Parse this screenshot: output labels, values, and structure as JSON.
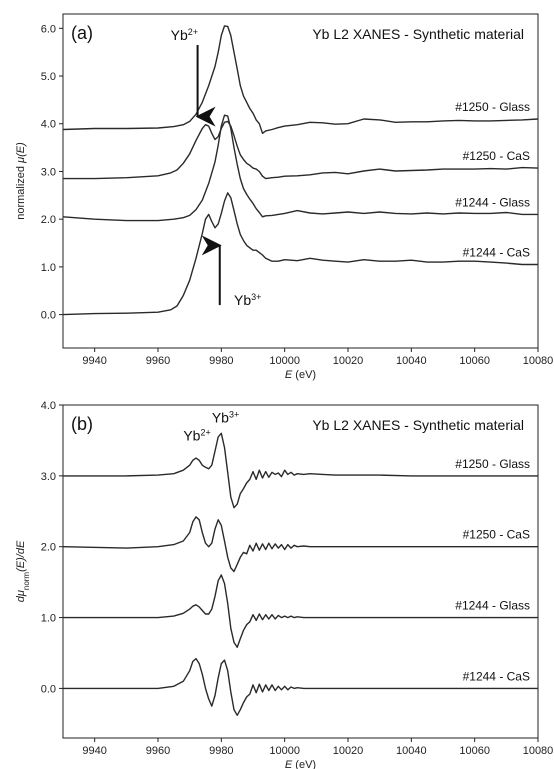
{
  "chart_data": [
    {
      "type": "line",
      "panel": "(a)",
      "title": "Yb L2 XANES - Synthetic material",
      "xlabel": "(eV)",
      "xlabel_math": "E",
      "ylabel_prefix": "normalized ",
      "ylabel_math": "μ(E)",
      "xlim": [
        9930,
        10080
      ],
      "ylim": [
        -0.7,
        6.3
      ],
      "xticks": [
        9940,
        9960,
        9980,
        10000,
        10020,
        10040,
        10060,
        10080
      ],
      "yticks": [
        0.0,
        1.0,
        2.0,
        3.0,
        4.0,
        5.0,
        6.0
      ],
      "ytick_labels": [
        "0.0",
        "1.0",
        "2.0",
        "3.0",
        "4.0",
        "5.0",
        "6.0"
      ],
      "annotations": [
        {
          "text": "Yb",
          "sup": "2+",
          "x": 9964,
          "y": 5.75,
          "arrow_from": 5.65,
          "arrow_to": 4.15,
          "arrow_x": 9972.5
        },
        {
          "text": "Yb",
          "sup": "3+",
          "x": 9984,
          "y": 0.2,
          "arrow_from": 0.2,
          "arrow_to": 1.45,
          "arrow_x": 9979.5
        }
      ],
      "series": [
        {
          "name": "#1250 - Glass",
          "offset": 3.9,
          "x": [
            9930,
            9940,
            9950,
            9960,
            9965,
            9968,
            9970,
            9972,
            9974,
            9976,
            9978,
            9979,
            9980,
            9981,
            9982,
            9983,
            9984,
            9985,
            9986,
            9987,
            9988,
            9989,
            9990,
            9991,
            9992,
            9993,
            9994,
            9996,
            9998,
            10000,
            10004,
            10008,
            10012,
            10016,
            10020,
            10025,
            10030,
            10035,
            10040,
            10045,
            10050,
            10055,
            10060,
            10065,
            10070,
            10075,
            10080
          ],
          "y": [
            -0.02,
            0,
            0,
            0.01,
            0.04,
            0.08,
            0.15,
            0.3,
            0.55,
            0.9,
            1.3,
            1.6,
            1.95,
            2.15,
            2.14,
            1.95,
            1.6,
            1.25,
            0.9,
            0.68,
            0.55,
            0.42,
            0.32,
            0.18,
            0.1,
            -0.1,
            -0.05,
            -0.02,
            0.02,
            0.05,
            0.08,
            0.13,
            0.12,
            0.09,
            0.1,
            0.2,
            0.18,
            0.13,
            0.14,
            0.14,
            0.16,
            0.17,
            0.16,
            0.16,
            0.17,
            0.18,
            0.2
          ]
        },
        {
          "name": "#1250 - CaS",
          "offset": 2.85,
          "x": [
            9930,
            9940,
            9950,
            9960,
            9964,
            9966,
            9968,
            9970,
            9972,
            9974,
            9975,
            9976,
            9977,
            9978,
            9979,
            9980,
            9981,
            9982,
            9983,
            9984,
            9985,
            9986,
            9987,
            9988,
            9989,
            9990,
            9991,
            9992,
            9993,
            9994,
            9996,
            9998,
            10000,
            10004,
            10008,
            10012,
            10016,
            10020,
            10025,
            10030,
            10035,
            10040,
            10045,
            10050,
            10055,
            10060,
            10065,
            10070,
            10075,
            10080
          ],
          "y": [
            0,
            0,
            0.02,
            0.06,
            0.12,
            0.18,
            0.32,
            0.52,
            0.8,
            1.05,
            1.13,
            1.1,
            0.95,
            0.82,
            0.88,
            1.05,
            1.18,
            1.2,
            1.1,
            0.9,
            0.68,
            0.5,
            0.4,
            0.32,
            0.28,
            0.22,
            0.2,
            0.15,
            0.05,
            0,
            0.02,
            0.03,
            0.05,
            0.06,
            0.08,
            0.12,
            0.13,
            0.1,
            0.16,
            0.2,
            0.16,
            0.17,
            0.18,
            0.2,
            0.2,
            0.2,
            0.21,
            0.2,
            0.23,
            0.22
          ]
        },
        {
          "name": "#1244 - Glass",
          "offset": 2.0,
          "x": [
            9930,
            9940,
            9950,
            9960,
            9965,
            9968,
            9970,
            9972,
            9974,
            9976,
            9978,
            9979,
            9980,
            9981,
            9982,
            9983,
            9984,
            9985,
            9986,
            9987,
            9988,
            9989,
            9990,
            9991,
            9992,
            9993,
            9994,
            9996,
            9998,
            10000,
            10004,
            10008,
            10012,
            10016,
            10020,
            10025,
            10030,
            10035,
            10040,
            10045,
            10050,
            10055,
            10060,
            10065,
            10070,
            10075,
            10080
          ],
          "y": [
            0.05,
            0,
            -0.03,
            -0.03,
            0,
            0.03,
            0.08,
            0.2,
            0.4,
            0.75,
            1.2,
            1.55,
            1.95,
            2.18,
            2.16,
            1.9,
            1.5,
            1.15,
            0.85,
            0.64,
            0.52,
            0.42,
            0.33,
            0.22,
            0.14,
            0.05,
            0.07,
            0.08,
            0.1,
            0.12,
            0.18,
            0.13,
            0.11,
            0.13,
            0.15,
            0.12,
            0.15,
            0.12,
            0.11,
            0.13,
            0.11,
            0.13,
            0.12,
            0.12,
            0.14,
            0.1,
            0.1
          ]
        },
        {
          "name": "#1244 - CaS",
          "offset": 1.0,
          "x": [
            9930,
            9940,
            9950,
            9960,
            9964,
            9966,
            9968,
            9970,
            9972,
            9974,
            9975,
            9976,
            9977,
            9978,
            9979,
            9980,
            9981,
            9982,
            9983,
            9984,
            9985,
            9986,
            9987,
            9988,
            9989,
            9990,
            9991,
            9992,
            9993,
            9994,
            9996,
            9998,
            10000,
            10004,
            10008,
            10012,
            10016,
            10020,
            10025,
            10030,
            10035,
            10040,
            10045,
            10050,
            10055,
            10060,
            10065,
            10070,
            10075,
            10080
          ],
          "y": [
            -1.0,
            -0.98,
            -0.97,
            -0.95,
            -0.9,
            -0.82,
            -0.6,
            -0.28,
            0.18,
            0.7,
            1.0,
            1.1,
            0.95,
            0.82,
            0.9,
            1.12,
            1.38,
            1.55,
            1.45,
            1.18,
            0.9,
            0.68,
            0.55,
            0.45,
            0.4,
            0.35,
            0.35,
            0.3,
            0.25,
            0.18,
            0.12,
            0.12,
            0.15,
            0.13,
            0.18,
            0.14,
            0.12,
            0.1,
            0.15,
            0.12,
            0.12,
            0.14,
            0.1,
            0.1,
            0.12,
            0.12,
            0.1,
            0.08,
            0.05,
            0.05
          ]
        }
      ]
    },
    {
      "type": "line",
      "panel": "(b)",
      "title": "Yb L2 XANES - Synthetic material",
      "xlabel": "(eV)",
      "xlabel_math": "E",
      "ylabel_d": "d",
      "ylabel_mu": "μ",
      "ylabel_sub": "norm",
      "ylabel_rest": "(E)/dE",
      "xlim": [
        9930,
        10080
      ],
      "ylim": [
        -0.7,
        4.0
      ],
      "xticks": [
        9940,
        9960,
        9980,
        10000,
        10020,
        10040,
        10060,
        10080
      ],
      "yticks": [
        0.0,
        1.0,
        2.0,
        3.0,
        4.0
      ],
      "ytick_labels": [
        "0.0",
        "1.0",
        "2.0",
        "3.0",
        "4.0"
      ],
      "annotations": [
        {
          "text": "Yb",
          "sup": "2+",
          "x": 9968,
          "y": 3.5
        },
        {
          "text": "Yb",
          "sup": "3+",
          "x": 9977,
          "y": 3.75
        }
      ],
      "series": [
        {
          "name": "#1250 - Glass",
          "offset": 3.0,
          "x": [
            9930,
            9950,
            9960,
            9965,
            9968,
            9970,
            9971,
            9972,
            9973,
            9974,
            9975,
            9976,
            9977,
            9978,
            9979,
            9980,
            9981,
            9982,
            9983,
            9984,
            9985,
            9986,
            9987,
            9988,
            9989,
            9990,
            9991,
            9992,
            9993,
            9994,
            9995,
            9996,
            9997,
            9998,
            9999,
            10000,
            10001,
            10002,
            10003,
            10004,
            10006,
            10008,
            10012,
            10016,
            10020,
            10030,
            10040,
            10050,
            10060,
            10070,
            10080
          ],
          "y": [
            0,
            0,
            0.01,
            0.03,
            0.08,
            0.15,
            0.22,
            0.25,
            0.22,
            0.15,
            0.12,
            0.1,
            0.15,
            0.35,
            0.55,
            0.6,
            0.4,
            0.05,
            -0.3,
            -0.45,
            -0.4,
            -0.25,
            -0.18,
            -0.1,
            -0.05,
            0.06,
            -0.05,
            0.08,
            -0.03,
            0.06,
            -0.02,
            0.05,
            0.02,
            0.04,
            -0.01,
            0.08,
            0.02,
            0.05,
            0.01,
            0.03,
            0.02,
            0.03,
            0.02,
            0.01,
            0.01,
            0.01,
            0,
            0,
            0,
            0,
            0
          ]
        },
        {
          "name": "#1250 - CaS",
          "offset": 2.0,
          "x": [
            9930,
            9950,
            9960,
            9965,
            9968,
            9970,
            9971,
            9972,
            9973,
            9974,
            9975,
            9976,
            9977,
            9978,
            9979,
            9980,
            9981,
            9982,
            9983,
            9984,
            9985,
            9986,
            9987,
            9988,
            9989,
            9990,
            9991,
            9992,
            9993,
            9994,
            9995,
            9996,
            9997,
            9998,
            9999,
            10000,
            10001,
            10002,
            10003,
            10004,
            10006,
            10008,
            10012,
            10016,
            10020,
            10030,
            10040,
            10050,
            10060,
            10070,
            10080
          ],
          "y": [
            0,
            -0.02,
            0,
            0.03,
            0.08,
            0.2,
            0.35,
            0.42,
            0.38,
            0.2,
            0.05,
            0.0,
            0.05,
            0.25,
            0.38,
            0.3,
            0.08,
            -0.15,
            -0.3,
            -0.35,
            -0.25,
            -0.15,
            -0.08,
            -0.1,
            0.02,
            -0.06,
            0.05,
            -0.05,
            0.04,
            -0.04,
            0.05,
            -0.03,
            0.04,
            -0.02,
            0.03,
            -0.04,
            0.03,
            -0.02,
            0.02,
            0,
            0.01,
            0,
            0,
            0,
            0,
            0,
            0,
            0,
            0,
            0,
            0
          ]
        },
        {
          "name": "#1244 - Glass",
          "offset": 1.0,
          "x": [
            9930,
            9950,
            9960,
            9965,
            9968,
            9970,
            9971,
            9972,
            9973,
            9974,
            9975,
            9976,
            9977,
            9978,
            9979,
            9980,
            9981,
            9982,
            9983,
            9984,
            9985,
            9986,
            9987,
            9988,
            9989,
            9990,
            9991,
            9992,
            9993,
            9994,
            9995,
            9996,
            9997,
            9998,
            9999,
            10000,
            10001,
            10002,
            10003,
            10004,
            10006,
            10008,
            10012,
            10016,
            10020,
            10030,
            10040,
            10050,
            10060,
            10070,
            10080
          ],
          "y": [
            0,
            0,
            0,
            0.02,
            0.06,
            0.12,
            0.16,
            0.18,
            0.15,
            0.1,
            0.05,
            0.05,
            0.12,
            0.3,
            0.52,
            0.6,
            0.48,
            0.2,
            -0.15,
            -0.35,
            -0.42,
            -0.3,
            -0.18,
            -0.1,
            -0.06,
            0.04,
            -0.04,
            0.05,
            -0.03,
            0.04,
            -0.02,
            0.04,
            -0.02,
            0.03,
            0,
            0.02,
            0,
            0.02,
            0,
            0.01,
            0,
            0,
            0,
            0,
            0,
            0,
            0,
            0,
            0,
            0,
            0
          ]
        },
        {
          "name": "#1244 - CaS",
          "offset": 0.0,
          "x": [
            9930,
            9950,
            9960,
            9965,
            9968,
            9970,
            9971,
            9972,
            9973,
            9974,
            9975,
            9976,
            9977,
            9978,
            9979,
            9980,
            9981,
            9982,
            9983,
            9984,
            9985,
            9986,
            9987,
            9988,
            9989,
            9990,
            9991,
            9992,
            9993,
            9994,
            9995,
            9996,
            9997,
            9998,
            9999,
            10000,
            10001,
            10002,
            10003,
            10004,
            10006,
            10008,
            10012,
            10016,
            10020,
            10030,
            10040,
            10050,
            10060,
            10070,
            10080
          ],
          "y": [
            0,
            0,
            0,
            0.03,
            0.1,
            0.25,
            0.38,
            0.42,
            0.35,
            0.2,
            0.0,
            -0.15,
            -0.25,
            -0.1,
            0.15,
            0.35,
            0.4,
            0.25,
            -0.05,
            -0.3,
            -0.38,
            -0.3,
            -0.2,
            -0.12,
            -0.08,
            0.05,
            -0.06,
            0.06,
            -0.05,
            0.05,
            -0.03,
            0.05,
            -0.03,
            0.03,
            -0.02,
            0.03,
            -0.02,
            0.02,
            0,
            0.01,
            0,
            0,
            0,
            0,
            0,
            0,
            0,
            0,
            0,
            0,
            0
          ]
        }
      ]
    }
  ]
}
